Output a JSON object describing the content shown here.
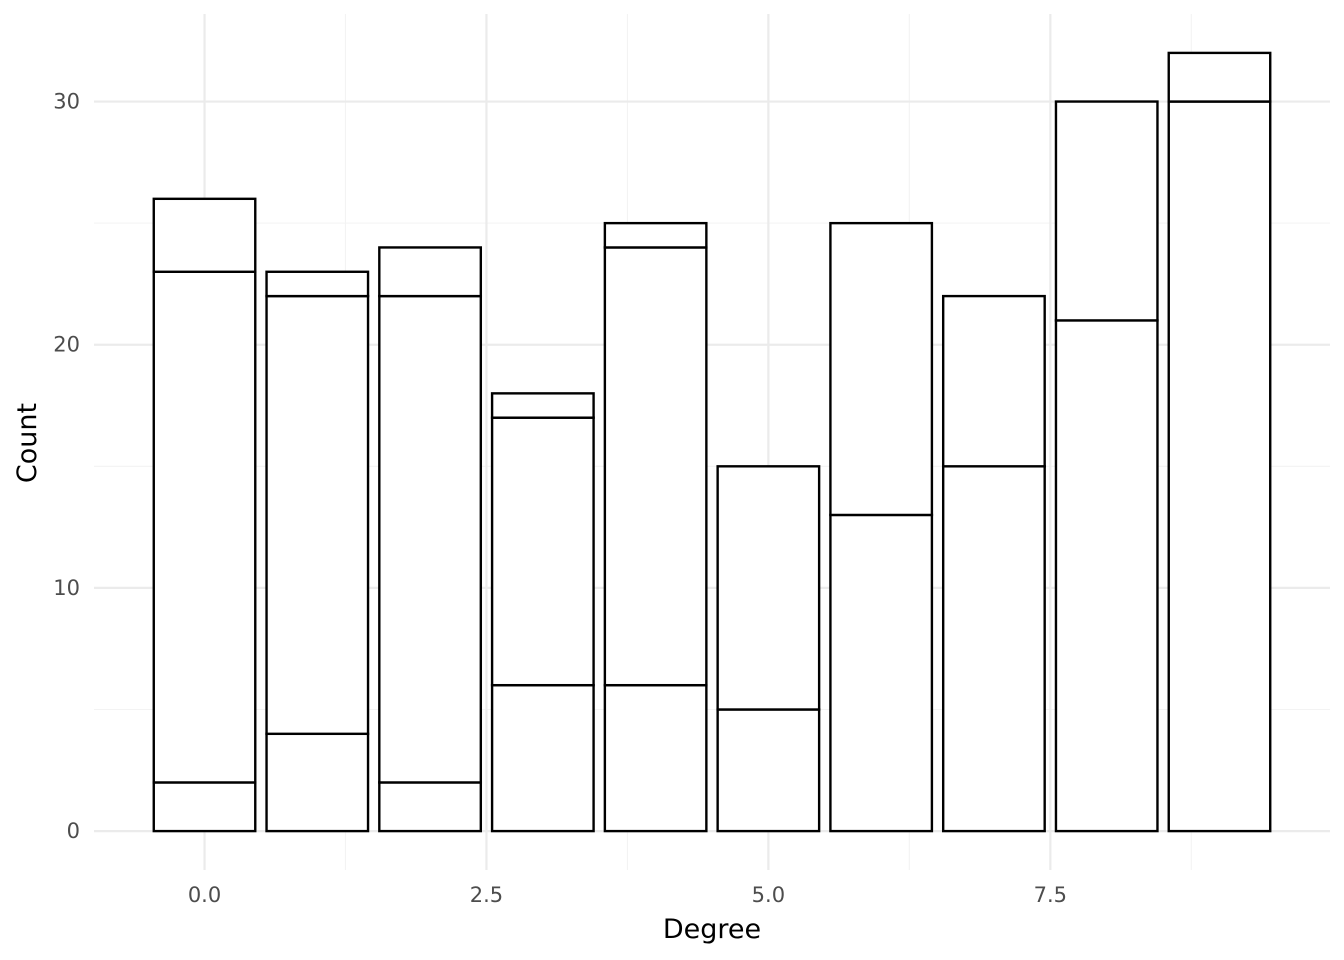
{
  "chart_data": {
    "type": "bar",
    "stacked": true,
    "title": "",
    "xlabel": "Degree",
    "ylabel": "Count",
    "x": [
      0,
      1,
      2,
      3,
      4,
      5,
      6,
      7,
      8,
      9
    ],
    "segment_bounds": [
      [
        0,
        2,
        23,
        26
      ],
      [
        0,
        4,
        22,
        23
      ],
      [
        0,
        2,
        22,
        24
      ],
      [
        0,
        6,
        17,
        18
      ],
      [
        0,
        6,
        24,
        25
      ],
      [
        0,
        5,
        15
      ],
      [
        0,
        13,
        25
      ],
      [
        0,
        15,
        22
      ],
      [
        0,
        21,
        30
      ],
      [
        0,
        30,
        32
      ]
    ],
    "totals": [
      26,
      23,
      24,
      18,
      25,
      15,
      25,
      22,
      30,
      32
    ],
    "xlim": [
      -0.98,
      9.98
    ],
    "ylim": [
      -1.6,
      33.6
    ],
    "x_ticks": [
      0.0,
      2.5,
      5.0,
      7.5
    ],
    "x_tick_labels": [
      "0.0",
      "2.5",
      "5.0",
      "7.5"
    ],
    "y_ticks": [
      0,
      10,
      20,
      30
    ],
    "y_tick_labels": [
      "0",
      "10",
      "20",
      "30"
    ],
    "grid": true,
    "legend": "none",
    "fill_color": "#ffffff",
    "outline_color": "#000000"
  }
}
